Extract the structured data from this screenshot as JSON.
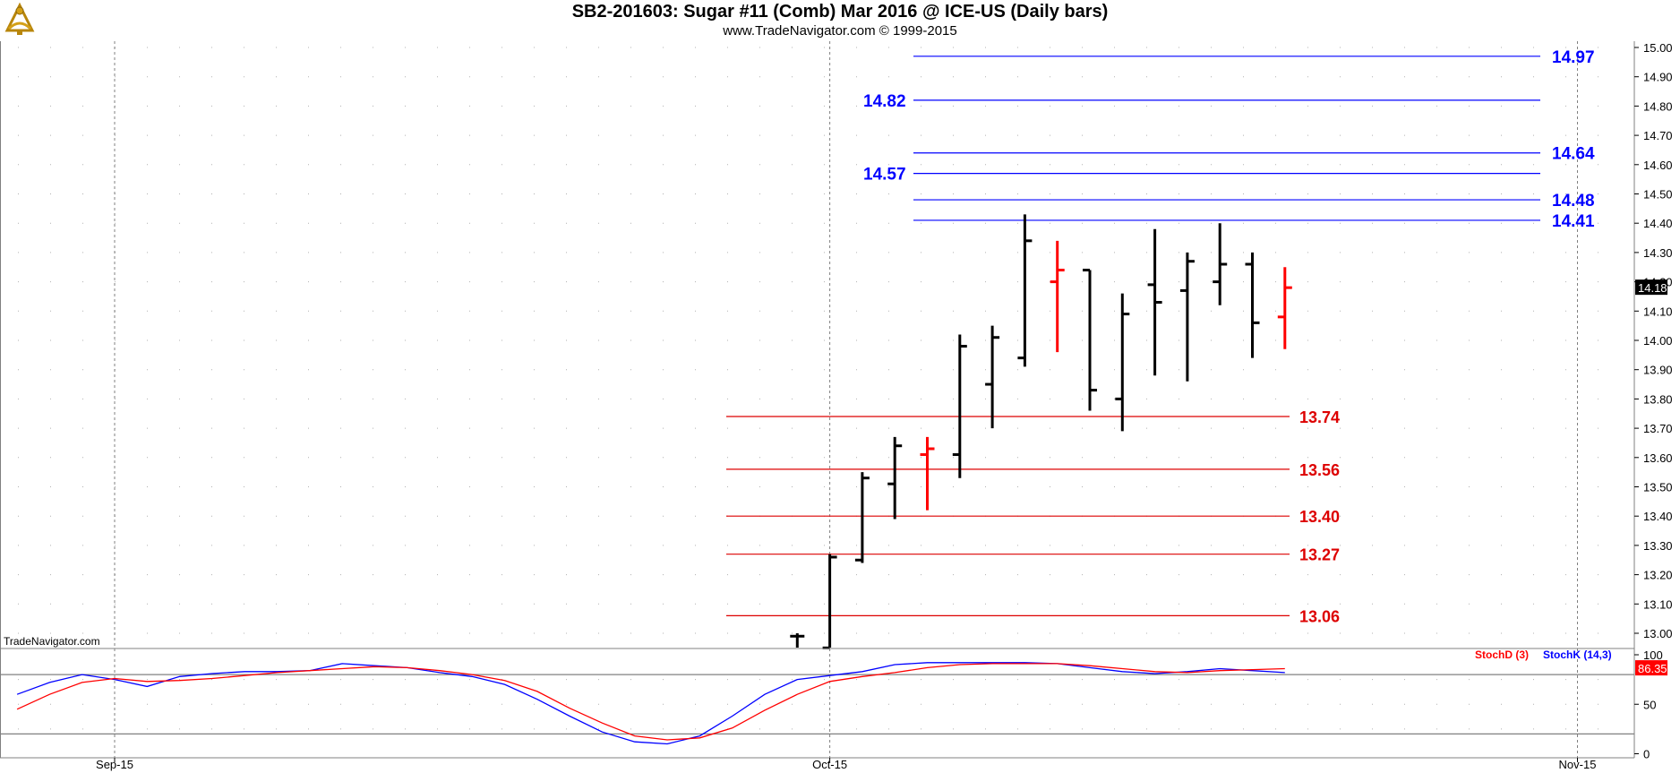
{
  "header": {
    "title": "SB2-201603:  Sugar #11 (Comb) Mar 2016 @ ICE-US  (Daily bars)",
    "subtitle": "www.TradeNavigator.com © 1999-2015"
  },
  "watermark": "TradeNavigator.com",
  "colors": {
    "bar_up": "#000000",
    "bar_down": "#ff0000",
    "blue_level": "#0000ff",
    "red_level": "#dd0000",
    "stoch_k": "#0000ff",
    "stoch_d": "#ff0000"
  },
  "chart_data": [
    {
      "type": "bar",
      "subtype": "ohlc",
      "ylim": [
        12.94,
        15.03
      ],
      "yticks": [
        "13.00",
        "13.10",
        "13.20",
        "13.30",
        "13.40",
        "13.50",
        "13.60",
        "13.70",
        "13.80",
        "13.90",
        "14.00",
        "14.10",
        "14.20",
        "14.30",
        "14.40",
        "14.50",
        "14.60",
        "14.70",
        "14.80",
        "14.90",
        "15.00"
      ],
      "x_labels": [
        {
          "label": "Sep-15",
          "day": 0
        },
        {
          "label": "Oct-15",
          "day": 22
        },
        {
          "label": "Nov-15",
          "day": 45
        }
      ],
      "last_price_label": "14.18",
      "bars": [
        {
          "day": 21,
          "open": 12.99,
          "high": 13.0,
          "low": 12.94,
          "close": 12.99,
          "color": "black"
        },
        {
          "day": 22,
          "open": 12.95,
          "high": 13.27,
          "low": 12.94,
          "close": 13.26,
          "color": "black"
        },
        {
          "day": 23,
          "open": 13.25,
          "high": 13.55,
          "low": 13.24,
          "close": 13.53,
          "color": "black"
        },
        {
          "day": 24,
          "open": 13.51,
          "high": 13.67,
          "low": 13.39,
          "close": 13.64,
          "color": "black"
        },
        {
          "day": 25,
          "open": 13.61,
          "high": 13.67,
          "low": 13.42,
          "close": 13.63,
          "color": "red"
        },
        {
          "day": 26,
          "open": 13.61,
          "high": 14.02,
          "low": 13.53,
          "close": 13.98,
          "color": "black"
        },
        {
          "day": 27,
          "open": 13.85,
          "high": 14.05,
          "low": 13.7,
          "close": 14.01,
          "color": "black"
        },
        {
          "day": 28,
          "open": 13.94,
          "high": 14.43,
          "low": 13.91,
          "close": 14.34,
          "color": "black"
        },
        {
          "day": 29,
          "open": 14.2,
          "high": 14.34,
          "low": 13.96,
          "close": 14.24,
          "color": "red"
        },
        {
          "day": 30,
          "open": 14.24,
          "high": 14.24,
          "low": 13.76,
          "close": 13.83,
          "color": "black"
        },
        {
          "day": 31,
          "open": 13.8,
          "high": 14.16,
          "low": 13.69,
          "close": 14.09,
          "color": "black"
        },
        {
          "day": 32,
          "open": 14.19,
          "high": 14.38,
          "low": 13.88,
          "close": 14.13,
          "color": "black"
        },
        {
          "day": 33,
          "open": 14.17,
          "high": 14.3,
          "low": 13.86,
          "close": 14.27,
          "color": "black"
        },
        {
          "day": 34,
          "open": 14.2,
          "high": 14.4,
          "low": 14.12,
          "close": 14.26,
          "color": "black"
        },
        {
          "day": 35,
          "open": 14.26,
          "high": 14.3,
          "low": 13.94,
          "close": 14.06,
          "color": "black"
        },
        {
          "day": 36,
          "open": 14.08,
          "high": 14.25,
          "low": 13.97,
          "close": 14.18,
          "color": "red"
        }
      ],
      "blue_levels": [
        {
          "value": 14.97,
          "label": "14.97",
          "label_side": "right"
        },
        {
          "value": 14.82,
          "label": "14.82",
          "label_side": "left"
        },
        {
          "value": 14.64,
          "label": "14.64",
          "label_side": "right"
        },
        {
          "value": 14.57,
          "label": "14.57",
          "label_side": "left"
        },
        {
          "value": 14.48,
          "label": "14.48",
          "label_side": "right"
        },
        {
          "value": 14.41,
          "label": "14.41",
          "label_side": "right"
        }
      ],
      "red_levels": [
        {
          "value": 13.74,
          "label": "13.74"
        },
        {
          "value": 13.56,
          "label": "13.56"
        },
        {
          "value": 13.4,
          "label": "13.40"
        },
        {
          "value": 13.27,
          "label": "13.27"
        },
        {
          "value": 13.06,
          "label": "13.06"
        }
      ]
    },
    {
      "type": "line",
      "ylim": [
        0,
        100
      ],
      "yticks": [
        "0",
        "50",
        "100"
      ],
      "reference_lines": [
        20,
        80
      ],
      "legend": [
        {
          "name": "StochD (3)",
          "color": "#ff0000"
        },
        {
          "name": "StochK (14,3)",
          "color": "#0000ff"
        }
      ],
      "last_value_label": "86.35",
      "x": [
        -3,
        -2,
        -1,
        0,
        1,
        2,
        3,
        4,
        5,
        6,
        7,
        8,
        9,
        10,
        11,
        12,
        13,
        14,
        15,
        16,
        17,
        18,
        19,
        20,
        21,
        22,
        23,
        24,
        25,
        26,
        27,
        28,
        29,
        30,
        31,
        32,
        33,
        34,
        35,
        36
      ],
      "series": [
        {
          "name": "StochK (14,3)",
          "values": [
            60,
            72,
            80,
            75,
            68,
            78,
            81,
            83,
            83,
            84,
            91,
            89,
            87,
            82,
            78,
            70,
            55,
            38,
            22,
            12,
            10,
            18,
            38,
            60,
            75,
            79,
            83,
            90,
            92,
            92,
            92,
            92,
            91,
            87,
            83,
            81,
            83,
            86,
            84,
            82
          ]
        },
        {
          "name": "StochD (3)",
          "values": [
            45,
            60,
            72,
            76,
            73,
            74,
            76,
            79,
            82,
            84,
            86,
            88,
            87,
            84,
            80,
            74,
            63,
            46,
            31,
            18,
            14,
            16,
            26,
            44,
            60,
            73,
            78,
            82,
            87,
            90,
            91,
            91,
            91,
            89,
            86,
            83,
            82,
            84,
            85,
            86
          ]
        }
      ]
    }
  ]
}
